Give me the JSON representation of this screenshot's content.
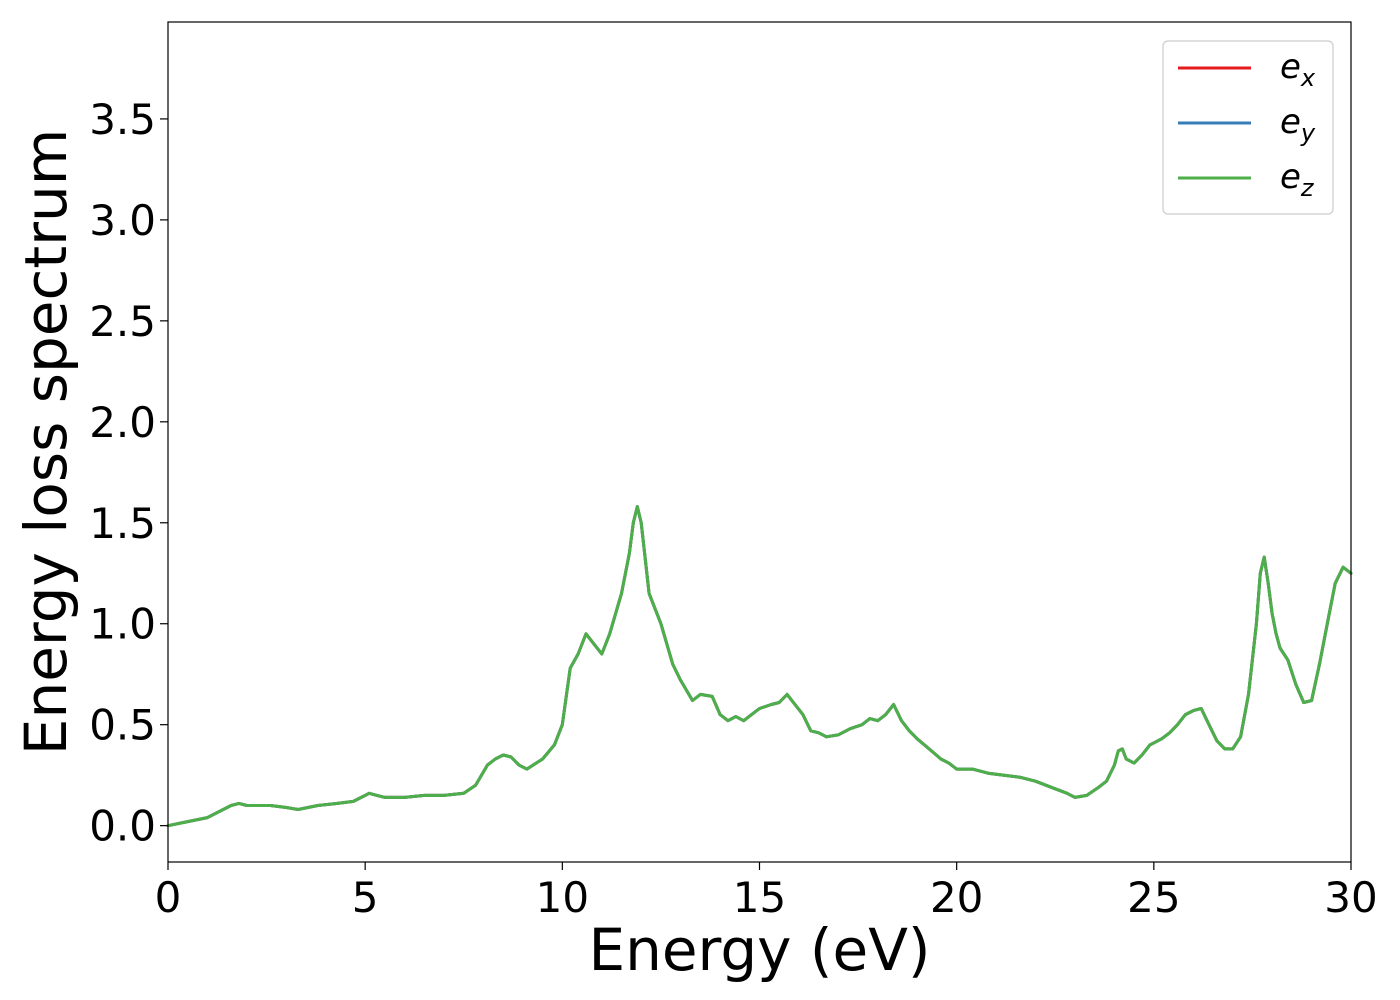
{
  "chart_data": {
    "type": "line",
    "xlabel": "Energy (eV)",
    "ylabel": "Energy loss spectrum",
    "xlim": [
      0,
      30
    ],
    "ylim": [
      -0.18,
      3.98
    ],
    "xticks": [
      0,
      5,
      10,
      15,
      20,
      25,
      30
    ],
    "xtick_labels": [
      "0",
      "5",
      "10",
      "15",
      "20",
      "25",
      "30"
    ],
    "yticks": [
      0.0,
      0.5,
      1.0,
      1.5,
      2.0,
      2.5,
      3.0,
      3.5
    ],
    "ytick_labels": [
      "0.0",
      "0.5",
      "1.0",
      "1.5",
      "2.0",
      "2.5",
      "3.0",
      "3.5"
    ],
    "grid": false,
    "legend_position": "top-right",
    "x": [
      0,
      0.5,
      1.0,
      1.3,
      1.6,
      1.8,
      2.0,
      2.2,
      2.6,
      3.0,
      3.3,
      3.8,
      4.3,
      4.7,
      5.0,
      5.1,
      5.3,
      5.5,
      6.0,
      6.5,
      7.0,
      7.5,
      7.8,
      8.1,
      8.3,
      8.5,
      8.7,
      8.9,
      9.1,
      9.5,
      9.8,
      10.0,
      10.2,
      10.4,
      10.6,
      10.8,
      11.0,
      11.2,
      11.5,
      11.7,
      11.8,
      11.9,
      12.0,
      12.2,
      12.5,
      12.8,
      13.0,
      13.3,
      13.5,
      13.8,
      14.0,
      14.2,
      14.4,
      14.6,
      14.8,
      15.0,
      15.3,
      15.5,
      15.7,
      15.9,
      16.1,
      16.3,
      16.5,
      16.7,
      17.0,
      17.3,
      17.6,
      17.8,
      18.0,
      18.2,
      18.4,
      18.6,
      18.8,
      19.0,
      19.3,
      19.6,
      19.8,
      20.0,
      20.4,
      20.8,
      21.2,
      21.6,
      22.0,
      22.4,
      22.8,
      23.0,
      23.3,
      23.6,
      23.8,
      24.0,
      24.1,
      24.2,
      24.3,
      24.5,
      24.7,
      24.9,
      25.2,
      25.4,
      25.6,
      25.8,
      26.0,
      26.2,
      26.4,
      26.6,
      26.8,
      27.0,
      27.2,
      27.4,
      27.6,
      27.7,
      27.8,
      27.9,
      28.0,
      28.1,
      28.2,
      28.4,
      28.6,
      28.8,
      29.0,
      29.2,
      29.4,
      29.6,
      29.8,
      30.0
    ],
    "series": [
      {
        "name": "e_x",
        "color": "#e41a1c",
        "values": [
          0.0,
          0.02,
          0.04,
          0.07,
          0.1,
          0.11,
          0.1,
          0.1,
          0.1,
          0.09,
          0.08,
          0.1,
          0.11,
          0.12,
          0.15,
          0.16,
          0.15,
          0.14,
          0.14,
          0.15,
          0.15,
          0.16,
          0.2,
          0.3,
          0.33,
          0.35,
          0.34,
          0.3,
          0.28,
          0.33,
          0.4,
          0.5,
          0.78,
          0.85,
          0.95,
          0.9,
          0.85,
          0.95,
          1.15,
          1.35,
          1.5,
          1.58,
          1.5,
          1.15,
          1.0,
          0.8,
          0.72,
          0.62,
          0.65,
          0.64,
          0.55,
          0.52,
          0.54,
          0.52,
          0.55,
          0.58,
          0.6,
          0.61,
          0.65,
          0.6,
          0.55,
          0.47,
          0.46,
          0.44,
          0.45,
          0.48,
          0.5,
          0.53,
          0.52,
          0.55,
          0.6,
          0.52,
          0.47,
          0.43,
          0.38,
          0.33,
          0.31,
          0.28,
          0.28,
          0.26,
          0.25,
          0.24,
          0.22,
          0.19,
          0.16,
          0.14,
          0.15,
          0.19,
          0.22,
          0.3,
          0.37,
          0.38,
          0.33,
          0.31,
          0.35,
          0.4,
          0.43,
          0.46,
          0.5,
          0.55,
          0.57,
          0.58,
          0.5,
          0.42,
          0.38,
          0.38,
          0.44,
          0.65,
          1.0,
          1.25,
          1.33,
          1.2,
          1.05,
          0.95,
          0.88,
          0.82,
          0.7,
          0.61,
          0.62,
          0.8,
          1.0,
          1.2,
          1.28,
          1.25
        ]
      },
      {
        "name": "e_y",
        "color": "#377eb8",
        "values": [
          0.0,
          0.02,
          0.04,
          0.07,
          0.1,
          0.11,
          0.1,
          0.1,
          0.1,
          0.09,
          0.08,
          0.1,
          0.11,
          0.12,
          0.15,
          0.16,
          0.15,
          0.14,
          0.14,
          0.15,
          0.15,
          0.16,
          0.2,
          0.3,
          0.33,
          0.35,
          0.34,
          0.3,
          0.28,
          0.33,
          0.4,
          0.5,
          0.78,
          0.85,
          0.95,
          0.9,
          0.85,
          0.95,
          1.15,
          1.35,
          1.5,
          1.58,
          1.5,
          1.15,
          1.0,
          0.8,
          0.72,
          0.62,
          0.65,
          0.64,
          0.55,
          0.52,
          0.54,
          0.52,
          0.55,
          0.58,
          0.6,
          0.61,
          0.65,
          0.6,
          0.55,
          0.47,
          0.46,
          0.44,
          0.45,
          0.48,
          0.5,
          0.53,
          0.52,
          0.55,
          0.6,
          0.52,
          0.47,
          0.43,
          0.38,
          0.33,
          0.31,
          0.28,
          0.28,
          0.26,
          0.25,
          0.24,
          0.22,
          0.19,
          0.16,
          0.14,
          0.15,
          0.19,
          0.22,
          0.3,
          0.37,
          0.38,
          0.33,
          0.31,
          0.35,
          0.4,
          0.43,
          0.46,
          0.5,
          0.55,
          0.57,
          0.58,
          0.5,
          0.42,
          0.38,
          0.38,
          0.44,
          0.65,
          1.0,
          1.25,
          1.33,
          1.2,
          1.05,
          0.95,
          0.88,
          0.82,
          0.7,
          0.61,
          0.62,
          0.8,
          1.0,
          1.2,
          1.28,
          1.25
        ]
      },
      {
        "name": "e_z",
        "color": "#4daf4a",
        "values": [
          0.0,
          0.02,
          0.04,
          0.07,
          0.1,
          0.11,
          0.1,
          0.1,
          0.1,
          0.09,
          0.08,
          0.1,
          0.11,
          0.12,
          0.15,
          0.16,
          0.15,
          0.14,
          0.14,
          0.15,
          0.15,
          0.16,
          0.2,
          0.3,
          0.33,
          0.35,
          0.34,
          0.3,
          0.28,
          0.33,
          0.4,
          0.5,
          0.78,
          0.85,
          0.95,
          0.9,
          0.85,
          0.95,
          1.15,
          1.35,
          1.5,
          1.58,
          1.5,
          1.15,
          1.0,
          0.8,
          0.72,
          0.62,
          0.65,
          0.64,
          0.55,
          0.52,
          0.54,
          0.52,
          0.55,
          0.58,
          0.6,
          0.61,
          0.65,
          0.6,
          0.55,
          0.47,
          0.46,
          0.44,
          0.45,
          0.48,
          0.5,
          0.53,
          0.52,
          0.55,
          0.6,
          0.52,
          0.47,
          0.43,
          0.38,
          0.33,
          0.31,
          0.28,
          0.28,
          0.26,
          0.25,
          0.24,
          0.22,
          0.19,
          0.16,
          0.14,
          0.15,
          0.19,
          0.22,
          0.3,
          0.37,
          0.38,
          0.33,
          0.31,
          0.35,
          0.4,
          0.43,
          0.46,
          0.5,
          0.55,
          0.57,
          0.58,
          0.5,
          0.42,
          0.38,
          0.38,
          0.44,
          0.65,
          1.0,
          1.25,
          1.33,
          1.2,
          1.05,
          0.95,
          0.88,
          0.82,
          0.7,
          0.61,
          0.62,
          0.8,
          1.0,
          1.2,
          1.28,
          1.25
        ]
      }
    ],
    "legend": [
      {
        "base": "e",
        "sub": "x"
      },
      {
        "base": "e",
        "sub": "y"
      },
      {
        "base": "e",
        "sub": "z"
      }
    ]
  }
}
